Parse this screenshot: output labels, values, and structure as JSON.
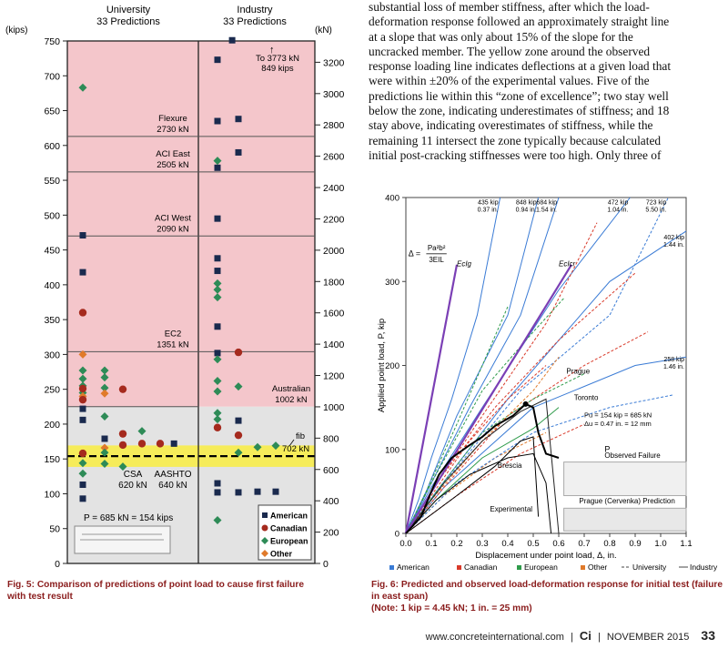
{
  "body_text": [
    "substantial loss of member stiffness, after which the load-",
    "deformation response followed an approximately straight line",
    "at a slope that was only about 15% of the slope for the",
    "uncracked member. The yellow zone around the observed",
    "response loading line indicates deflections at a given load that",
    "were within ±20% of the experimental values. Five of the",
    "predictions lie within this “zone of excellence”; two stay well",
    "below the zone, indicating underestimates of stiffness; and 18",
    "stay above, indicating overestimates of stiffness, while the",
    "remaining 11 intersect the zone typically because calculated",
    "initial post-cracking stiffnesses were too high. Only three of"
  ],
  "fig5": {
    "caption_label": "Fig. 5: Comparison of predictions of point load to cause first failure with test result",
    "caption_line1": "Fig. 5: Comparison of predictions of point load to cause first failure",
    "caption_line2": "with test result",
    "col_uni_1": "University",
    "col_uni_2": "33 Predictions",
    "col_ind_1": "Industry",
    "col_ind_2": "33 Predictions",
    "unit_left": "(kips)",
    "unit_right": "(kN)",
    "kips_ticks": [
      "750",
      "700",
      "650",
      "600",
      "550",
      "500",
      "450",
      "400",
      "350",
      "300",
      "250",
      "200",
      "150",
      "100",
      "50",
      "0"
    ],
    "kn_ticks": [
      "3200",
      "3000",
      "2800",
      "2600",
      "2400",
      "2200",
      "2000",
      "1800",
      "1600",
      "1400",
      "1200",
      "1000",
      "800",
      "600",
      "400",
      "200",
      "0"
    ],
    "lines": [
      {
        "l1": "Flexure",
        "l2": "2730 kN",
        "kips": 613
      },
      {
        "l1": "ACI East",
        "l2": "2505 kN",
        "kips": 562
      },
      {
        "l1": "ACI West",
        "l2": "2090 kN",
        "kips": 470
      },
      {
        "l1": "EC2",
        "l2": "1351 kN",
        "kips": 304
      },
      {
        "l1": "Australian",
        "l2": "1002 kN",
        "kips": 225
      }
    ],
    "top_note_1": "To 3773 kN",
    "top_note_2": "849 kips",
    "fib": "fib",
    "fib_val": "702 kN",
    "csa_1": "CSA",
    "csa_2": "620 kN",
    "aashto_1": "AASHTO",
    "aashto_2": "640 kN",
    "p_label": "P = 685 kN = 154 kips",
    "test_kips": 154,
    "legend": [
      "American",
      "Canadian",
      "European",
      "Other"
    ],
    "colors": {
      "american": "#1a2a4e",
      "canadian": "#a52a1e",
      "european": "#2e8b57",
      "other": "#e07a2a",
      "pink": "#f4c6cb",
      "grey": "#e3e3e3",
      "yellow": "#f6ec5a"
    },
    "points": [
      {
        "s": "e",
        "c": 0,
        "k": 683
      },
      {
        "s": "a",
        "c": 0,
        "k": 471
      },
      {
        "s": "a",
        "c": 0,
        "k": 418
      },
      {
        "s": "c",
        "c": 0,
        "k": 360
      },
      {
        "s": "o",
        "c": 0,
        "k": 300
      },
      {
        "s": "e",
        "c": 0,
        "k": 277
      },
      {
        "s": "e",
        "c": 0,
        "k": 265
      },
      {
        "s": "e",
        "c": 0,
        "k": 255
      },
      {
        "s": "e",
        "c": 0,
        "k": 245
      },
      {
        "s": "c",
        "c": 0,
        "k": 251
      },
      {
        "s": "o",
        "c": 0,
        "k": 240
      },
      {
        "s": "c",
        "c": 0,
        "k": 235
      },
      {
        "s": "a",
        "c": 0,
        "k": 222
      },
      {
        "s": "a",
        "c": 0,
        "k": 206
      },
      {
        "s": "c",
        "c": 0,
        "k": 158
      },
      {
        "s": "e",
        "c": 0,
        "k": 144
      },
      {
        "s": "e",
        "c": 0,
        "k": 129
      },
      {
        "s": "a",
        "c": 0,
        "k": 113
      },
      {
        "s": "a",
        "c": 0,
        "k": 93
      },
      {
        "s": "e",
        "c": 1,
        "k": 277
      },
      {
        "s": "e",
        "c": 1,
        "k": 267
      },
      {
        "s": "e",
        "c": 1,
        "k": 252
      },
      {
        "s": "o",
        "c": 1,
        "k": 244
      },
      {
        "s": "e",
        "c": 1,
        "k": 211
      },
      {
        "s": "a",
        "c": 1,
        "k": 179
      },
      {
        "s": "o",
        "c": 1,
        "k": 166
      },
      {
        "s": "e",
        "c": 1,
        "k": 159
      },
      {
        "s": "e",
        "c": 1,
        "k": 143
      },
      {
        "s": "c",
        "c": 2,
        "k": 250
      },
      {
        "s": "c",
        "c": 2,
        "k": 186
      },
      {
        "s": "c",
        "c": 2,
        "k": 170
      },
      {
        "s": "e",
        "c": 2,
        "k": 139
      },
      {
        "s": "e",
        "c": 3,
        "k": 190
      },
      {
        "s": "c",
        "c": 3,
        "k": 172
      },
      {
        "s": "c",
        "c": 4,
        "k": 172
      },
      {
        "s": "a",
        "c": 4.8,
        "k": 172
      },
      {
        "s": "a",
        "c": 6,
        "k": 723
      },
      {
        "s": "a",
        "c": 6,
        "k": 635
      },
      {
        "s": "a",
        "c": 6,
        "k": 568
      },
      {
        "s": "e",
        "c": 6,
        "k": 578
      },
      {
        "s": "a",
        "c": 6,
        "k": 495
      },
      {
        "s": "a",
        "c": 6,
        "k": 438
      },
      {
        "s": "a",
        "c": 6,
        "k": 420
      },
      {
        "s": "e",
        "c": 6,
        "k": 402
      },
      {
        "s": "e",
        "c": 6,
        "k": 393
      },
      {
        "s": "e",
        "c": 6,
        "k": 382
      },
      {
        "s": "a",
        "c": 6,
        "k": 340
      },
      {
        "s": "a",
        "c": 6,
        "k": 302
      },
      {
        "s": "e",
        "c": 6,
        "k": 293
      },
      {
        "s": "e",
        "c": 6,
        "k": 262
      },
      {
        "s": "e",
        "c": 6,
        "k": 247
      },
      {
        "s": "e",
        "c": 6,
        "k": 216
      },
      {
        "s": "e",
        "c": 6,
        "k": 207
      },
      {
        "s": "c",
        "c": 6,
        "k": 195
      },
      {
        "s": "a",
        "c": 6,
        "k": 115
      },
      {
        "s": "a",
        "c": 6,
        "k": 102
      },
      {
        "s": "e",
        "c": 6,
        "k": 62
      },
      {
        "s": "a",
        "c": 7,
        "k": 638
      },
      {
        "s": "a",
        "c": 7,
        "k": 590
      },
      {
        "s": "c",
        "c": 7,
        "k": 303
      },
      {
        "s": "e",
        "c": 7,
        "k": 254
      },
      {
        "s": "a",
        "c": 7,
        "k": 205
      },
      {
        "s": "c",
        "c": 7,
        "k": 184
      },
      {
        "s": "e",
        "c": 7,
        "k": 159
      },
      {
        "s": "a",
        "c": 7,
        "k": 102
      },
      {
        "s": "e",
        "c": 8,
        "k": 167
      },
      {
        "s": "a",
        "c": 8,
        "k": 103
      },
      {
        "s": "e",
        "c": 9,
        "k": 169
      },
      {
        "s": "a",
        "c": 9,
        "k": 103
      },
      {
        "s": "a",
        "c": 6.7,
        "k": 751
      }
    ]
  },
  "chart_data": {
    "type": "line",
    "title": "Predicted and observed load-deformation response for initial test (failure in east span)",
    "xlabel": "Displacement under point load, Δ, in.",
    "ylabel": "Applied point load, P, kip",
    "xlim": [
      0,
      1.1
    ],
    "ylim": [
      0,
      400
    ],
    "xticks": [
      "0.0",
      "0.1",
      "0.2",
      "0.3",
      "0.4",
      "0.5",
      "0.6",
      "0.7",
      "0.8",
      "0.9",
      "1.0",
      "1.1"
    ],
    "yticks": [
      "0",
      "100",
      "200",
      "300",
      "400"
    ],
    "formula_lhs": "Δ =",
    "formula_num": "Pa²b²",
    "formula_den": "3EIL",
    "eig_label": "EcIg",
    "eicr_label": "EcIcr",
    "callouts": [
      {
        "t1": "435 kip",
        "t2": "0.37 in.",
        "x": 0.37,
        "y": 400
      },
      {
        "t1": "684 kip",
        "t2": "1.54 in.",
        "x": 0.6,
        "y": 400
      },
      {
        "t1": "848 kip",
        "t2": "0.94 in.",
        "x": 0.52,
        "y": 400
      },
      {
        "t1": "472 kip",
        "t2": "1.04 in.",
        "x": 0.88,
        "y": 400
      },
      {
        "t1": "723 kip",
        "t2": "5.50 in.",
        "x": 1.03,
        "y": 400
      },
      {
        "t1": "402 kip",
        "t2": "1.44 in.",
        "x": 1.1,
        "y": 350
      },
      {
        "t1": "258 kip",
        "t2": "1.46 in.",
        "x": 1.1,
        "y": 205
      }
    ],
    "annotations": {
      "prague": "Prague",
      "toronto": "Toronto",
      "brescia": "Brescia",
      "experimental": "Experimental",
      "pu_1": "Pu = 154 kip = 685 kN",
      "pu_2": "Δu = 0.47 in. = 12 mm",
      "observed_failure": "Observed Failure",
      "prague_pred": "Prague (Cervenka) Prediction",
      "p": "P"
    },
    "series": [
      {
        "name": "Experimental",
        "values": [
          [
            0,
            0
          ],
          [
            0.06,
            20
          ],
          [
            0.1,
            50
          ],
          [
            0.13,
            70
          ],
          [
            0.18,
            90
          ],
          [
            0.25,
            105
          ],
          [
            0.3,
            115
          ],
          [
            0.35,
            128
          ],
          [
            0.42,
            140
          ],
          [
            0.47,
            154
          ],
          [
            0.5,
            150
          ],
          [
            0.52,
            120
          ],
          [
            0.55,
            95
          ],
          [
            0.6,
            90
          ]
        ]
      },
      {
        "name": "EcIg",
        "values": [
          [
            0,
            0
          ],
          [
            0.2,
            320
          ]
        ]
      },
      {
        "name": "EcIcr",
        "values": [
          [
            0,
            0
          ],
          [
            0.65,
            320
          ]
        ]
      }
    ],
    "legend": [
      "American",
      "Canadian",
      "European",
      "Other",
      "University",
      "Industry"
    ]
  },
  "footer": {
    "url": "www.concreteinternational.com",
    "brand": "Ci",
    "date": "NOVEMBER 2015",
    "page": "33",
    "sep": "|"
  }
}
